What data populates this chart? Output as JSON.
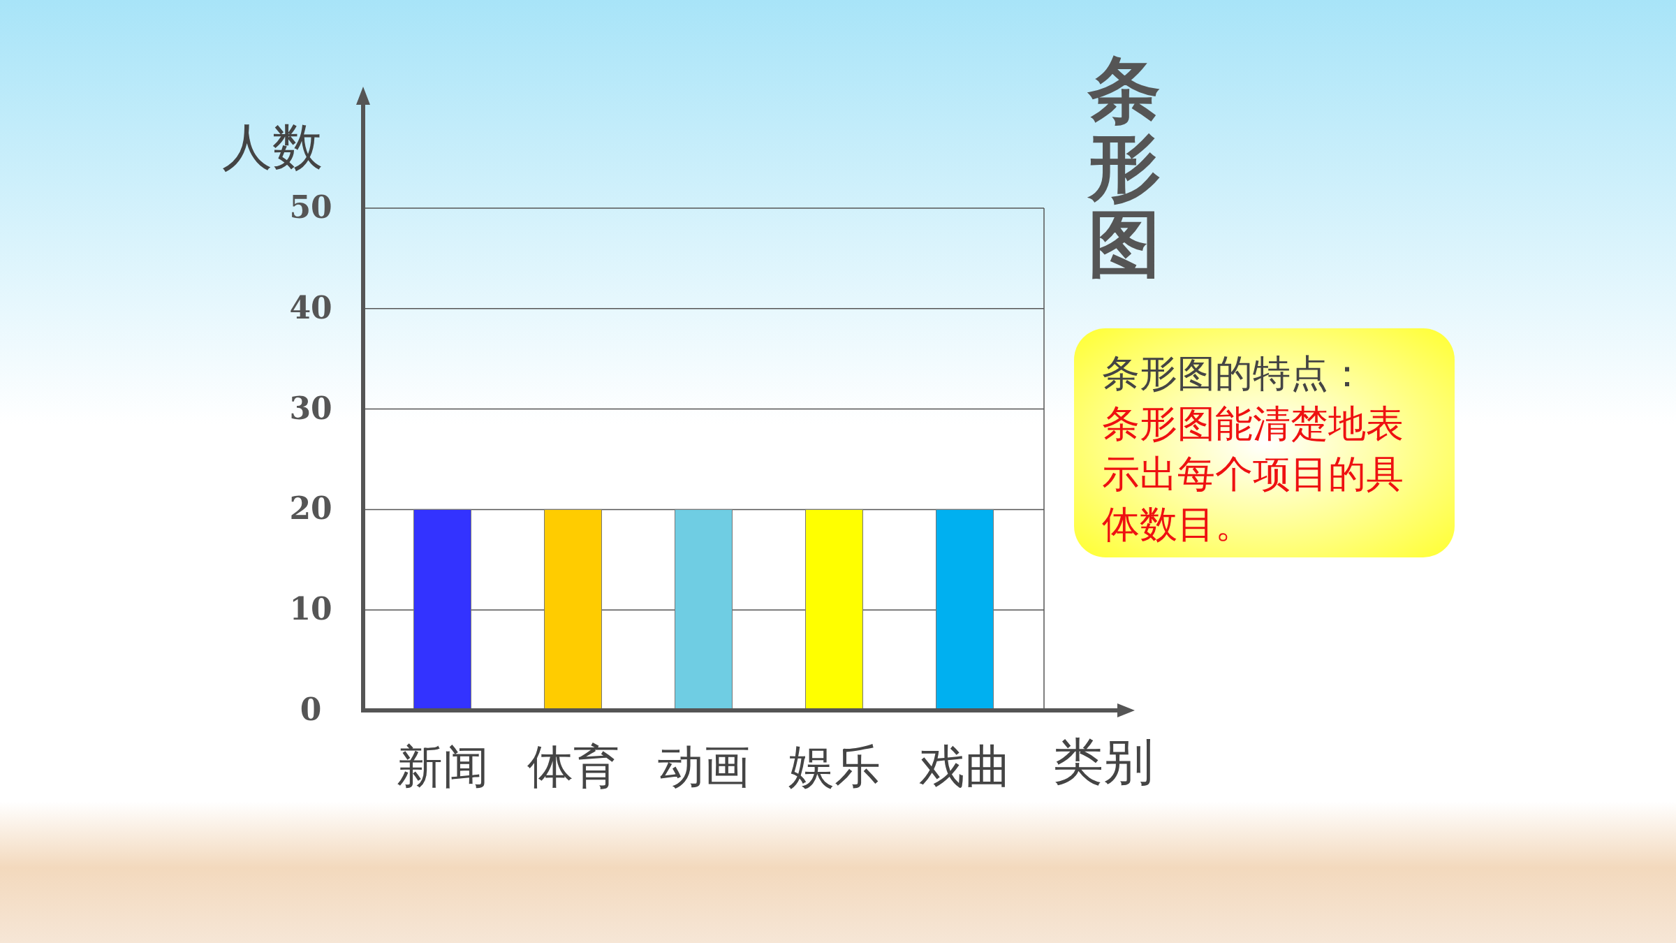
{
  "chart_data": {
    "type": "bar",
    "title": "条形图",
    "xlabel": "类别",
    "ylabel": "人数",
    "categories": [
      "新闻",
      "体育",
      "动画",
      "娱乐",
      "戏曲"
    ],
    "values": [
      20,
      20,
      20,
      20,
      20
    ],
    "colors": [
      "#3333ff",
      "#ffcc00",
      "#6fcde3",
      "#ffff00",
      "#00b0f0"
    ],
    "ylim": [
      0,
      50
    ],
    "yticks": [
      0,
      10,
      20,
      30,
      40,
      50
    ],
    "grid": "y",
    "annotations": [
      "条形图的特点：",
      "条形图能清楚地表示出每个项目的具体数目。"
    ]
  }
}
